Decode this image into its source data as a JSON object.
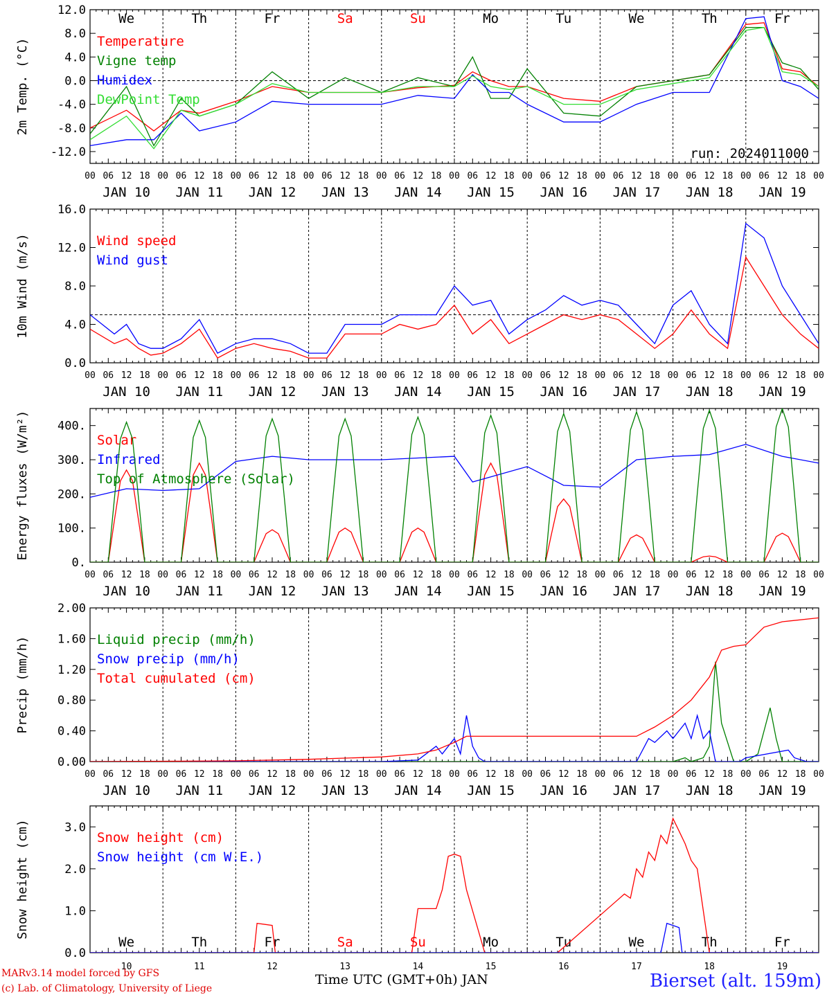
{
  "footer": {
    "credit_line1": "MARv3.14 model forced by GFS",
    "credit_line2": "(c) Lab. of Climatology, University of Liege",
    "station": "Bierset (alt. 159m)",
    "x_title": "Time UTC (GMT+0h) JAN"
  },
  "colors": {
    "red": "#ff0000",
    "green": "#008000",
    "blue": "#0000ff",
    "lightgreen": "#33dd33",
    "weekday": "#000000",
    "weekend": "#ff0000"
  },
  "hour_ticks": [
    "00",
    "06",
    "12",
    "18"
  ],
  "hour_ticks_end": "00",
  "days": [
    "JAN 10",
    "JAN 11",
    "JAN 12",
    "JAN 13",
    "JAN 14",
    "JAN 15",
    "JAN 16",
    "JAN 17",
    "JAN 18",
    "JAN 19"
  ],
  "day_numbers": [
    "10",
    "11",
    "12",
    "13",
    "14",
    "15",
    "16",
    "17",
    "18",
    "19"
  ],
  "weekdays": [
    {
      "label": "We",
      "weekend": false
    },
    {
      "label": "Th",
      "weekend": false
    },
    {
      "label": "Fr",
      "weekend": false
    },
    {
      "label": "Sa",
      "weekend": true
    },
    {
      "label": "Su",
      "weekend": true
    },
    {
      "label": "Mo",
      "weekend": false
    },
    {
      "label": "Tu",
      "weekend": false
    },
    {
      "label": "We",
      "weekend": false
    },
    {
      "label": "Th",
      "weekend": false
    },
    {
      "label": "Fr",
      "weekend": false
    }
  ],
  "chart_data": [
    {
      "type": "line",
      "ylabel": "2m Temp. (°C)",
      "ylim": [
        -14,
        12
      ],
      "yticks": [
        "12.0",
        "8.0",
        "4.0",
        "0.0",
        "-4.0",
        "-8.0",
        "-12.0"
      ],
      "ytick_values": [
        12,
        8,
        4,
        0,
        -4,
        -8,
        -12
      ],
      "dashed_reference": 0,
      "annotation": "run: 2024011000",
      "show_weekdays": true,
      "x_unit": "hours since JAN 10 00 UTC",
      "series": [
        {
          "name": "Temperature",
          "color": "red",
          "x": [
            0,
            12,
            21,
            30,
            36,
            48,
            60,
            72,
            84,
            96,
            108,
            120,
            126,
            132,
            138,
            144,
            156,
            168,
            180,
            192,
            204,
            216,
            222,
            228,
            234,
            240
          ],
          "y": [
            -8,
            -5,
            -8.5,
            -5,
            -5.5,
            -3.5,
            -1,
            -2,
            -2,
            -2,
            -1.2,
            -0.8,
            1.5,
            0,
            -1,
            -1,
            -3,
            -3.5,
            -1,
            0,
            1,
            9.5,
            9.8,
            2,
            1.5,
            -1
          ]
        },
        {
          "name": "Vigne temp",
          "color": "green",
          "x": [
            0,
            12,
            21,
            30,
            36,
            48,
            60,
            72,
            84,
            96,
            108,
            120,
            126,
            132,
            138,
            144,
            156,
            168,
            180,
            192,
            204,
            216,
            222,
            228,
            234,
            240
          ],
          "y": [
            -9,
            -1,
            -11,
            -3,
            -6,
            -4,
            1.5,
            -3,
            0.5,
            -2,
            0.5,
            -1,
            4,
            -3,
            -3,
            2,
            -5.5,
            -6,
            -1,
            0,
            1,
            9,
            9,
            3,
            2,
            -1.5
          ]
        },
        {
          "name": "Humidex",
          "color": "blue",
          "x": [
            0,
            12,
            21,
            30,
            36,
            48,
            60,
            72,
            84,
            96,
            108,
            120,
            126,
            132,
            138,
            144,
            156,
            168,
            180,
            192,
            204,
            216,
            222,
            228,
            234,
            240
          ],
          "y": [
            -11,
            -10,
            -10,
            -5.5,
            -8.5,
            -7,
            -3.5,
            -4,
            -4,
            -4,
            -2.5,
            -3,
            1,
            -2,
            -2,
            -4,
            -7,
            -7,
            -4,
            -2,
            -2,
            10.5,
            10.8,
            0,
            -1,
            -3
          ]
        },
        {
          "name": "DewPoint Temp",
          "color": "lightgreen",
          "x": [
            0,
            12,
            21,
            30,
            36,
            48,
            60,
            72,
            84,
            96,
            108,
            120,
            126,
            132,
            138,
            144,
            156,
            168,
            180,
            192,
            204,
            216,
            222,
            228,
            234,
            240
          ],
          "y": [
            -10,
            -6,
            -11.5,
            -5,
            -6,
            -4,
            -0.5,
            -2,
            -2,
            -2,
            -1,
            -1,
            0.8,
            -1,
            -1.5,
            -1,
            -4,
            -4,
            -1.5,
            -0.5,
            0.5,
            8.5,
            9,
            1.5,
            1,
            -1
          ]
        }
      ]
    },
    {
      "type": "line",
      "ylabel": "10m Wind (m/s)",
      "ylim": [
        0,
        16
      ],
      "yticks": [
        "16.0",
        "12.0",
        "8.0",
        "4.0",
        "0.0"
      ],
      "ytick_values": [
        16,
        12,
        8,
        4,
        0
      ],
      "dashed_reference": 5,
      "x_unit": "hours since JAN 10 00 UTC",
      "series": [
        {
          "name": "Wind speed",
          "color": "red",
          "x": [
            0,
            8,
            12,
            16,
            20,
            24,
            30,
            36,
            42,
            48,
            54,
            60,
            66,
            72,
            78,
            84,
            90,
            96,
            102,
            108,
            114,
            120,
            126,
            132,
            138,
            144,
            150,
            156,
            162,
            168,
            174,
            180,
            186,
            192,
            198,
            204,
            210,
            216,
            222,
            228,
            234,
            240
          ],
          "y": [
            3.5,
            2,
            2.5,
            1.5,
            0.8,
            1,
            2,
            3.5,
            0.5,
            1.5,
            2,
            1.5,
            1.2,
            0.5,
            0.5,
            3,
            3,
            3,
            4,
            3.5,
            4,
            6,
            3,
            4.5,
            2,
            3,
            4,
            5,
            4.5,
            5,
            4.5,
            3,
            1.5,
            3,
            5.5,
            3,
            1.5,
            11,
            8,
            5,
            3,
            1.5
          ]
        },
        {
          "name": "Wind gust",
          "color": "blue",
          "x": [
            0,
            8,
            12,
            16,
            20,
            24,
            30,
            36,
            42,
            48,
            54,
            60,
            66,
            72,
            78,
            84,
            90,
            96,
            102,
            108,
            114,
            120,
            126,
            132,
            138,
            144,
            150,
            156,
            162,
            168,
            174,
            180,
            186,
            192,
            198,
            204,
            210,
            216,
            222,
            228,
            234,
            240
          ],
          "y": [
            5,
            3,
            4,
            2,
            1.5,
            1.5,
            2.5,
            4.5,
            1,
            2,
            2.5,
            2.5,
            2,
            1,
            1,
            4,
            4,
            4,
            5,
            5,
            5,
            8,
            6,
            6.5,
            3,
            4.5,
            5.5,
            7,
            6,
            6.5,
            6,
            4,
            2,
            6,
            7.5,
            4,
            2,
            14.5,
            13,
            8,
            5,
            2
          ]
        }
      ]
    },
    {
      "type": "line",
      "ylabel": "Energy fluxes (W/m²)",
      "ylim": [
        0,
        450
      ],
      "yticks": [
        "400.",
        "300.",
        "200.",
        "100.",
        "0."
      ],
      "ytick_values": [
        400,
        300,
        200,
        100,
        0
      ],
      "x_unit": "hours since JAN 10 00 UTC",
      "series": [
        {
          "name": "Solar",
          "color": "red",
          "peaks": [
            270,
            290,
            95,
            100,
            100,
            290,
            185,
            80,
            18,
            85
          ]
        },
        {
          "name": "Infrared",
          "color": "blue",
          "x": [
            0,
            12,
            24,
            36,
            48,
            60,
            72,
            84,
            96,
            108,
            120,
            126,
            132,
            144,
            156,
            168,
            180,
            192,
            204,
            216,
            228,
            240
          ],
          "y": [
            190,
            215,
            210,
            215,
            295,
            310,
            300,
            300,
            300,
            305,
            310,
            235,
            250,
            280,
            225,
            220,
            300,
            310,
            315,
            345,
            310,
            290
          ]
        },
        {
          "name": "Top of Atmosphere (Solar)",
          "color": "green",
          "peaks": [
            410,
            415,
            420,
            420,
            425,
            430,
            435,
            440,
            445,
            450
          ]
        }
      ]
    },
    {
      "type": "line",
      "ylabel": "Precip (mm/h)",
      "ylim": [
        0,
        2
      ],
      "yticks": [
        "2.00",
        "1.60",
        "1.20",
        "0.80",
        "0.40",
        "0.00"
      ],
      "ytick_values": [
        2,
        1.6,
        1.2,
        0.8,
        0.4,
        0
      ],
      "x_unit": "hours since JAN 10 00 UTC",
      "series": [
        {
          "name": "Liquid precip (mm/h)",
          "color": "green",
          "x": [
            0,
            192,
            196,
            198,
            202,
            204,
            206,
            208,
            212,
            216,
            220,
            224,
            226,
            228,
            232,
            240
          ],
          "y": [
            0,
            0,
            0.05,
            0,
            0.05,
            0.2,
            1.3,
            0.5,
            0,
            0,
            0.1,
            0.7,
            0.3,
            0,
            0,
            0
          ]
        },
        {
          "name": "Snow precip (mm/h)",
          "color": "blue",
          "x": [
            0,
            96,
            108,
            114,
            116,
            118,
            120,
            122,
            124,
            126,
            128,
            130,
            180,
            184,
            186,
            190,
            192,
            196,
            198,
            200,
            202,
            204,
            206,
            210,
            214,
            216,
            230,
            232,
            236,
            240
          ],
          "y": [
            0,
            0,
            0.02,
            0.2,
            0.1,
            0.2,
            0.3,
            0.1,
            0.6,
            0.2,
            0.05,
            0,
            0,
            0.3,
            0.25,
            0.4,
            0.3,
            0.5,
            0.3,
            0.6,
            0.3,
            0.4,
            0,
            0,
            0,
            0.05,
            0.15,
            0.05,
            0,
            0
          ]
        },
        {
          "name": "Total cumulated (cm)",
          "color": "red",
          "x": [
            0,
            48,
            72,
            96,
            108,
            114,
            120,
            124,
            180,
            186,
            192,
            198,
            204,
            208,
            212,
            216,
            222,
            228,
            240
          ],
          "y": [
            0,
            0.01,
            0.03,
            0.06,
            0.1,
            0.15,
            0.25,
            0.33,
            0.33,
            0.45,
            0.6,
            0.8,
            1.1,
            1.45,
            1.5,
            1.52,
            1.75,
            1.82,
            1.87
          ]
        }
      ]
    },
    {
      "type": "line",
      "ylabel": "Snow height (cm)",
      "ylim": [
        0,
        3.5
      ],
      "yticks": [
        "3.0",
        "2.0",
        "1.0",
        "0.0"
      ],
      "ytick_values": [
        3,
        2,
        1,
        0
      ],
      "show_weekdays_bottom": true,
      "x_unit": "hours since JAN 10 00 UTC",
      "series": [
        {
          "name": "Snow height (cm)",
          "color": "red",
          "x": [
            0,
            54,
            55,
            60,
            61,
            106,
            108,
            114,
            116,
            118,
            120,
            122,
            124,
            128,
            130,
            134,
            136,
            154,
            176,
            178,
            180,
            182,
            184,
            186,
            188,
            190,
            192,
            194,
            196,
            198,
            200,
            202,
            204,
            206,
            208,
            210,
            240
          ],
          "y": [
            0,
            0,
            0.7,
            0.65,
            0,
            0,
            1.05,
            1.05,
            1.5,
            2.3,
            2.35,
            2.3,
            1.5,
            0.5,
            0,
            0,
            0,
            0,
            1.4,
            1.3,
            2,
            1.8,
            2.4,
            2.2,
            2.8,
            2.6,
            3.2,
            2.9,
            2.6,
            2.2,
            2,
            1,
            0,
            0,
            0,
            0,
            0
          ]
        },
        {
          "name": "Snow height (cm W.E.)",
          "color": "blue",
          "x": [
            0,
            188,
            190,
            192,
            194,
            195,
            240
          ],
          "y": [
            0,
            0,
            0.7,
            0.65,
            0.6,
            0,
            0
          ]
        }
      ]
    }
  ]
}
